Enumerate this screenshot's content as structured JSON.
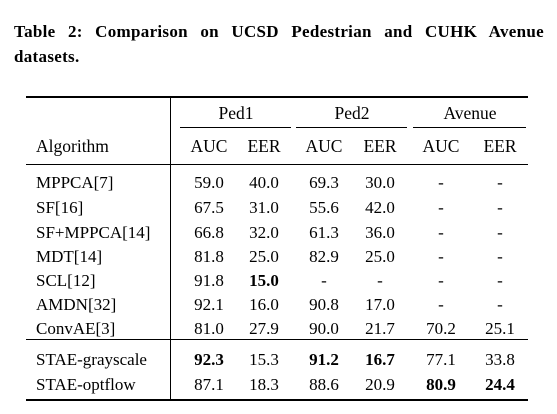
{
  "caption": "Table 2: Comparison on UCSD Pedestrian and CUHK Avenue datasets.",
  "table": {
    "groups": [
      "Ped1",
      "Ped2",
      "Avenue"
    ],
    "algorithm_header": "Algorithm",
    "subheaders": [
      "AUC",
      "EER",
      "AUC",
      "EER",
      "AUC",
      "EER"
    ],
    "rows": [
      {
        "algorithm": "MPPCA[7]",
        "values": [
          "59.0",
          "40.0",
          "69.3",
          "30.0",
          "-",
          "-"
        ]
      },
      {
        "algorithm": "SF[16]",
        "values": [
          "67.5",
          "31.0",
          "55.6",
          "42.0",
          "-",
          "-"
        ]
      },
      {
        "algorithm": "SF+MPPCA[14]",
        "values": [
          "66.8",
          "32.0",
          "61.3",
          "36.0",
          "-",
          "-"
        ]
      },
      {
        "algorithm": "MDT[14]",
        "values": [
          "81.8",
          "25.0",
          "82.9",
          "25.0",
          "-",
          "-"
        ]
      },
      {
        "algorithm": "SCL[12]",
        "values": [
          "91.8",
          "15.0",
          "-",
          "-",
          "-",
          "-"
        ],
        "bold": [
          false,
          true,
          false,
          false,
          false,
          false
        ]
      },
      {
        "algorithm": "AMDN[32]",
        "values": [
          "92.1",
          "16.0",
          "90.8",
          "17.0",
          "-",
          "-"
        ]
      },
      {
        "algorithm": "ConvAE[3]",
        "values": [
          "81.0",
          "27.9",
          "90.0",
          "21.7",
          "70.2",
          "25.1"
        ]
      },
      {
        "algorithm": "STAE-grayscale",
        "values": [
          "92.3",
          "15.3",
          "91.2",
          "16.7",
          "77.1",
          "33.8"
        ],
        "bold": [
          true,
          false,
          true,
          true,
          false,
          false
        ]
      },
      {
        "algorithm": "STAE-optflow",
        "values": [
          "87.1",
          "18.3",
          "88.6",
          "20.9",
          "80.9",
          "24.4"
        ],
        "bold": [
          false,
          false,
          false,
          false,
          true,
          true
        ]
      }
    ]
  }
}
